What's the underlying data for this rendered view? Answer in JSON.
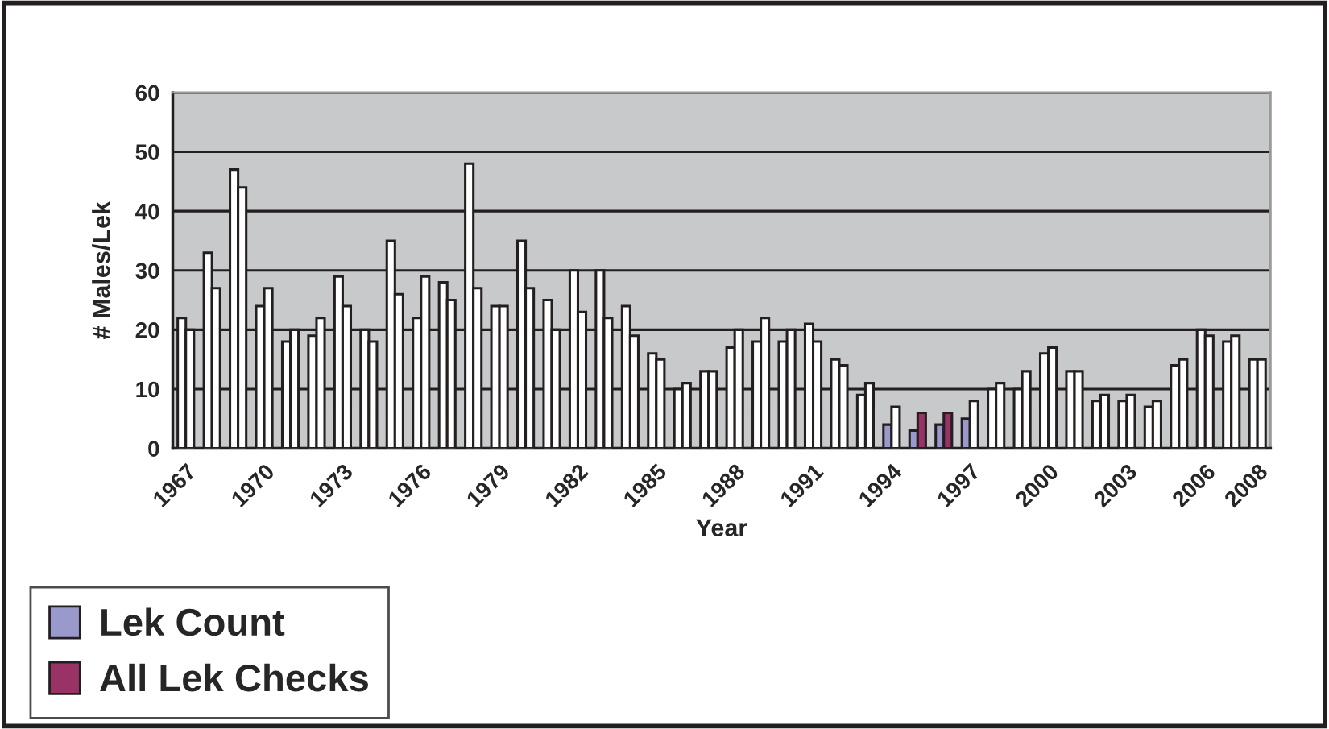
{
  "chart_data": {
    "type": "bar",
    "xlabel": "Year",
    "ylabel": "# Males/Lek",
    "categories": [
      "1967",
      null,
      null,
      "1970",
      null,
      null,
      "1973",
      null,
      null,
      "1976",
      null,
      null,
      "1979",
      null,
      null,
      "1982",
      null,
      null,
      "1985",
      null,
      null,
      "1988",
      null,
      null,
      "1991",
      null,
      null,
      "1994",
      null,
      null,
      "1997",
      null,
      null,
      "2000",
      null,
      null,
      "2003",
      null,
      null,
      "2006",
      null,
      "2008"
    ],
    "series": [
      {
        "name": "Lek Count",
        "color": "#9999cc",
        "colors": [
          "#ffffff",
          "#ffffff",
          "#ffffff",
          "#ffffff",
          "#ffffff",
          "#ffffff",
          "#ffffff",
          "#ffffff",
          "#ffffff",
          "#ffffff",
          "#ffffff",
          "#ffffff",
          "#ffffff",
          "#ffffff",
          "#ffffff",
          "#ffffff",
          "#ffffff",
          "#ffffff",
          "#ffffff",
          "#ffffff",
          "#ffffff",
          "#ffffff",
          "#ffffff",
          "#ffffff",
          "#ffffff",
          "#ffffff",
          "#ffffff",
          "#9999cc",
          "#9999cc",
          "#9999cc",
          "#9999cc",
          "#ffffff",
          "#ffffff",
          "#ffffff",
          "#ffffff",
          "#ffffff",
          "#ffffff",
          "#ffffff",
          "#ffffff",
          "#ffffff",
          "#ffffff",
          "#ffffff"
        ],
        "values": [
          22,
          33,
          47,
          24,
          18,
          19,
          29,
          20,
          35,
          22,
          28,
          48,
          24,
          35,
          25,
          30,
          30,
          24,
          16,
          10,
          13,
          17,
          18,
          18,
          21,
          15,
          9,
          4,
          3,
          4,
          5,
          10,
          10,
          16,
          13,
          8,
          8,
          7,
          14,
          20,
          18,
          15
        ]
      },
      {
        "name": "All Lek Checks",
        "color": "#993366",
        "colors": [
          "#ffffff",
          "#ffffff",
          "#ffffff",
          "#ffffff",
          "#ffffff",
          "#ffffff",
          "#ffffff",
          "#ffffff",
          "#ffffff",
          "#ffffff",
          "#ffffff",
          "#ffffff",
          "#ffffff",
          "#ffffff",
          "#ffffff",
          "#ffffff",
          "#ffffff",
          "#ffffff",
          "#ffffff",
          "#ffffff",
          "#ffffff",
          "#ffffff",
          "#ffffff",
          "#ffffff",
          "#ffffff",
          "#ffffff",
          "#ffffff",
          "#ffffff",
          "#993366",
          "#993366",
          "#ffffff",
          "#ffffff",
          "#ffffff",
          "#ffffff",
          "#ffffff",
          "#ffffff",
          "#ffffff",
          "#ffffff",
          "#ffffff",
          "#ffffff",
          "#ffffff",
          "#ffffff"
        ],
        "values": [
          20,
          27,
          44,
          27,
          20,
          22,
          24,
          18,
          26,
          29,
          25,
          27,
          24,
          27,
          20,
          23,
          22,
          19,
          15,
          11,
          13,
          20,
          22,
          20,
          18,
          14,
          11,
          7,
          6,
          6,
          8,
          11,
          13,
          17,
          13,
          9,
          9,
          8,
          15,
          19,
          19,
          15
        ]
      }
    ],
    "ylim": [
      0,
      60
    ],
    "yticks": [
      0,
      10,
      20,
      30,
      40,
      50,
      60
    ],
    "grid": "y",
    "legend": "bottom left"
  }
}
